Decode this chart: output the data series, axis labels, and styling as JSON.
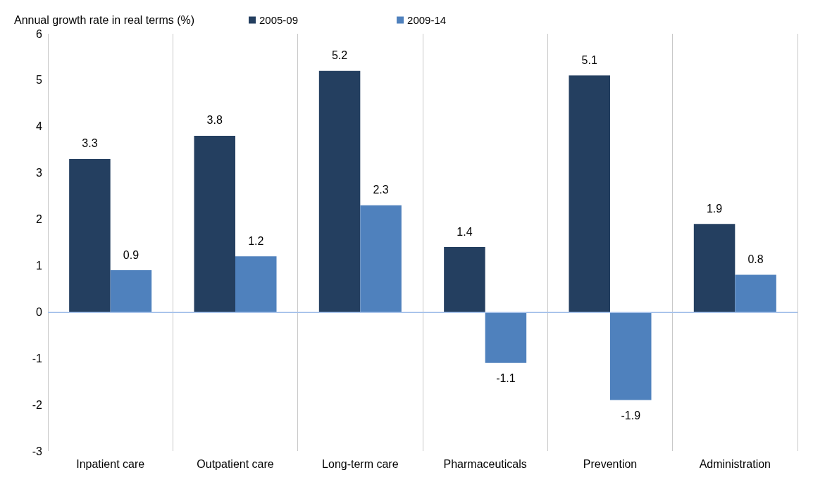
{
  "chart_data": {
    "type": "bar",
    "ylabel": "Annual growth rate in real terms (%)",
    "categories": [
      "Inpatient care",
      "Outpatient care",
      "Long-term care",
      "Pharmaceuticals",
      "Prevention",
      "Administration"
    ],
    "series": [
      {
        "name": "2005-09",
        "color": "#243f60",
        "values": [
          3.3,
          3.8,
          5.2,
          1.4,
          5.1,
          1.9
        ]
      },
      {
        "name": "2009-14",
        "color": "#4f81bd",
        "values": [
          0.9,
          1.2,
          2.3,
          -1.1,
          -1.9,
          0.8
        ]
      }
    ],
    "ylim": [
      -3,
      6
    ],
    "yticks": [
      -3,
      -2,
      -1,
      0,
      1,
      2,
      3,
      4,
      5,
      6
    ],
    "ref_lines": [
      {
        "axis": "y",
        "value": 0,
        "color": "#a9c4eb"
      }
    ],
    "grid": "x",
    "legend": "top",
    "data_labels": true
  }
}
